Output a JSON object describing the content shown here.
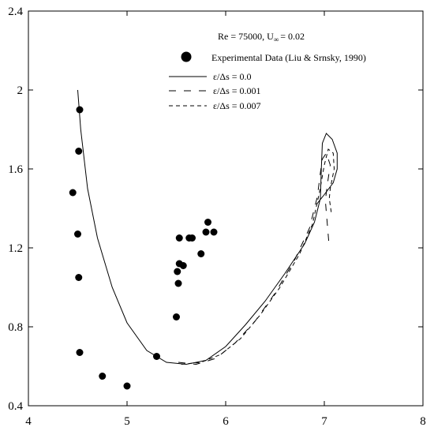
{
  "chart_data": {
    "type": "scatter",
    "title": "Re = 75000, U∞ = 0.02",
    "title_parts": {
      "lead": "Re = 75000, U",
      "sub": "∞",
      "tail": "= 0.02"
    },
    "xlabel": "",
    "ylabel": "",
    "xlim": [
      4,
      8
    ],
    "ylim": [
      0.4,
      2.4
    ],
    "x_ticks": [
      4,
      5,
      6,
      7,
      8
    ],
    "y_ticks": [
      0.4,
      0.8,
      1.2,
      1.6,
      2,
      2.4
    ],
    "x_tick_labels": [
      "4",
      "5",
      "6",
      "7",
      "8"
    ],
    "y_tick_labels": [
      "0.4",
      "0.8",
      "1.2",
      "1.6",
      "2",
      "2.4"
    ],
    "grid": false,
    "legend_position": "top-right",
    "series": [
      {
        "name": "Experimental Data (Liu & Srnsky, 1990)",
        "kind": "markers",
        "points": [
          [
            4.52,
            1.9
          ],
          [
            4.51,
            1.69
          ],
          [
            4.45,
            1.48
          ],
          [
            4.5,
            1.27
          ],
          [
            4.51,
            1.05
          ],
          [
            4.52,
            0.67
          ],
          [
            4.75,
            0.55
          ],
          [
            5.0,
            0.5
          ],
          [
            5.3,
            0.65
          ],
          [
            5.5,
            0.85
          ],
          [
            5.52,
            1.02
          ],
          [
            5.51,
            1.08
          ],
          [
            5.53,
            1.12
          ],
          [
            5.57,
            1.11
          ],
          [
            5.53,
            1.25
          ],
          [
            5.63,
            1.25
          ],
          [
            5.66,
            1.25
          ],
          [
            5.75,
            1.17
          ],
          [
            5.8,
            1.28
          ],
          [
            5.82,
            1.33
          ],
          [
            5.88,
            1.28
          ]
        ]
      },
      {
        "name": "ε/Δs = 0.0",
        "kind": "line",
        "dash": "solid",
        "points": [
          [
            4.5,
            2.0
          ],
          [
            4.53,
            1.8
          ],
          [
            4.6,
            1.5
          ],
          [
            4.7,
            1.25
          ],
          [
            4.85,
            1.0
          ],
          [
            5.0,
            0.82
          ],
          [
            5.2,
            0.68
          ],
          [
            5.4,
            0.62
          ],
          [
            5.6,
            0.61
          ],
          [
            5.8,
            0.63
          ],
          [
            6.0,
            0.7
          ],
          [
            6.2,
            0.81
          ],
          [
            6.4,
            0.93
          ],
          [
            6.6,
            1.07
          ],
          [
            6.8,
            1.22
          ],
          [
            6.9,
            1.33
          ],
          [
            6.96,
            1.45
          ],
          [
            6.97,
            1.6
          ],
          [
            6.98,
            1.73
          ],
          [
            7.02,
            1.78
          ],
          [
            7.08,
            1.75
          ],
          [
            7.13,
            1.68
          ],
          [
            7.13,
            1.6
          ],
          [
            7.09,
            1.53
          ],
          [
            7.0,
            1.47
          ],
          [
            6.92,
            1.42
          ]
        ]
      },
      {
        "name": "ε/Δs = 0.001",
        "kind": "line",
        "dash": "long-dash",
        "points": [
          [
            5.52,
            0.62
          ],
          [
            5.7,
            0.61
          ],
          [
            5.9,
            0.64
          ],
          [
            6.1,
            0.72
          ],
          [
            6.3,
            0.83
          ],
          [
            6.5,
            0.97
          ],
          [
            6.7,
            1.14
          ],
          [
            6.85,
            1.3
          ],
          [
            6.93,
            1.46
          ],
          [
            6.96,
            1.58
          ],
          [
            6.98,
            1.65
          ],
          [
            7.02,
            1.68
          ],
          [
            7.06,
            1.62
          ],
          [
            7.03,
            1.52
          ],
          [
            7.01,
            1.44
          ],
          [
            7.03,
            1.32
          ],
          [
            7.05,
            1.2
          ]
        ]
      },
      {
        "name": "ε/Δs = 0.007",
        "kind": "line",
        "dash": "short-dash",
        "points": [
          [
            5.55,
            0.61
          ],
          [
            5.75,
            0.62
          ],
          [
            5.95,
            0.66
          ],
          [
            6.15,
            0.74
          ],
          [
            6.35,
            0.86
          ],
          [
            6.55,
            1.0
          ],
          [
            6.75,
            1.17
          ],
          [
            6.88,
            1.32
          ],
          [
            6.95,
            1.48
          ],
          [
            7.0,
            1.62
          ],
          [
            7.04,
            1.7
          ],
          [
            7.09,
            1.68
          ],
          [
            7.1,
            1.6
          ],
          [
            7.06,
            1.5
          ],
          [
            7.05,
            1.45
          ],
          [
            7.07,
            1.38
          ]
        ]
      }
    ]
  }
}
